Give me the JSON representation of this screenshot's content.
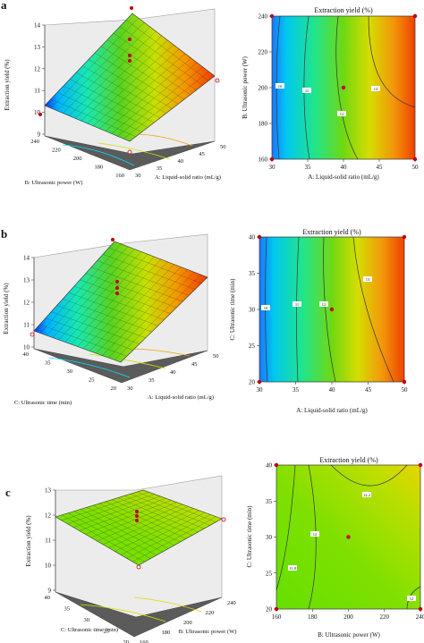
{
  "panels": [
    {
      "letter": "a",
      "surface": {
        "z_label": "Extraction yield (%)",
        "z_ticks": [
          "9",
          "10",
          "11",
          "12",
          "13",
          "14"
        ],
        "left_axis_label": "B: Ultrasonic power (W)",
        "left_ticks": [
          "160",
          "180",
          "200",
          "220",
          "240"
        ],
        "right_axis_label": "A: Liquid-solid ratio (mL/g)",
        "right_ticks": [
          "30",
          "35",
          "40",
          "45",
          "50"
        ]
      },
      "contour": {
        "title": "Extraction yield (%)",
        "xlabel": "A: Liquid-solid ratio (mL/g)",
        "ylabel": "B: Ultrasonic power (W)",
        "x_ticks": [
          "30",
          "35",
          "40",
          "45",
          "50"
        ],
        "y_ticks": [
          "160",
          "180",
          "200",
          "220",
          "240"
        ],
        "contour_labels": [
          "10",
          "11",
          "12",
          "13"
        ]
      }
    },
    {
      "letter": "b",
      "surface": {
        "z_label": "Extraction yield (%)",
        "z_ticks": [
          "10",
          "11",
          "12",
          "13",
          "14"
        ],
        "left_axis_label": "C: Ultrasonic time (min)",
        "left_ticks": [
          "20",
          "25",
          "30",
          "35",
          "40"
        ],
        "right_axis_label": "A: Liquid-solid ratio (mL/g)",
        "right_ticks": [
          "30",
          "35",
          "40",
          "45",
          "50"
        ]
      },
      "contour": {
        "title": "Extraction yield (%)",
        "xlabel": "A: Liquid-solid ratio (mL/g)",
        "ylabel": "C: Ultrasonic time (min)",
        "x_ticks": [
          "30",
          "35",
          "40",
          "45",
          "50"
        ],
        "y_ticks": [
          "20",
          "25",
          "30",
          "35",
          "40"
        ],
        "contour_labels": [
          "10",
          "11",
          "12",
          "13"
        ]
      }
    },
    {
      "letter": "c",
      "surface": {
        "z_label": "Extraction yield (%)",
        "z_ticks": [
          "9",
          "10",
          "11",
          "12",
          "13"
        ],
        "left_axis_label": "C: Ultrasonic time (min)",
        "left_ticks": [
          "20",
          "25",
          "30",
          "35",
          "40"
        ],
        "right_axis_label": "B: Ultrasonic power (W)",
        "right_ticks": [
          "160",
          "180",
          "200",
          "220",
          "240"
        ]
      },
      "contour": {
        "title": "Extraction yield (%)",
        "xlabel": "B: Ultrasonic power (W)",
        "ylabel": "C: Ultrasonic time (min)",
        "x_ticks": [
          "160",
          "180",
          "200",
          "220",
          "240"
        ],
        "y_ticks": [
          "20",
          "25",
          "30",
          "35",
          "40"
        ],
        "contour_labels": [
          "11.8",
          "12",
          "12.2",
          "12"
        ]
      }
    }
  ],
  "chart_data": [
    {
      "type": "surface",
      "panel": "a",
      "x_name": "A: Liquid-solid ratio (mL/g)",
      "x_range": [
        30,
        50
      ],
      "y_name": "B: Ultrasonic power (W)",
      "y_range": [
        160,
        240
      ],
      "z_name": "Extraction yield (%)",
      "z_range": [
        9,
        14
      ],
      "corner_values": {
        "x30_y160": 9.3,
        "x50_y160": 11.4,
        "x30_y240": 9.8,
        "x50_y240": 13.4
      },
      "peak": {
        "x": 43,
        "y": 230,
        "z": 14.2
      },
      "center_point": {
        "x": 40,
        "y": 200,
        "z": 13.2
      }
    },
    {
      "type": "contour",
      "panel": "a",
      "x_range": [
        30,
        50
      ],
      "y_range": [
        160,
        240
      ],
      "levels": [
        10,
        11,
        12,
        13
      ],
      "design_points": [
        [
          30,
          160
        ],
        [
          50,
          160
        ],
        [
          30,
          240
        ],
        [
          50,
          240
        ],
        [
          40,
          200
        ]
      ]
    },
    {
      "type": "surface",
      "panel": "b",
      "x_name": "A: Liquid-solid ratio (mL/g)",
      "x_range": [
        30,
        50
      ],
      "y_name": "C: Ultrasonic time (min)",
      "y_range": [
        20,
        40
      ],
      "z_name": "Extraction yield (%)",
      "z_range": [
        10,
        14
      ],
      "corner_values": {
        "x30_y20": 9.8,
        "x50_y20": 12.5,
        "x30_y40": 10.5,
        "x50_y40": 13.5
      },
      "peak": {
        "x": 45,
        "y": 38,
        "z": 13.9
      },
      "center_point": {
        "x": 40,
        "y": 30,
        "z": 12.9
      }
    },
    {
      "type": "contour",
      "panel": "b",
      "x_range": [
        30,
        50
      ],
      "y_range": [
        20,
        40
      ],
      "levels": [
        10,
        11,
        12,
        13
      ],
      "design_points": [
        [
          30,
          20
        ],
        [
          50,
          20
        ],
        [
          30,
          40
        ],
        [
          50,
          40
        ],
        [
          40,
          30
        ]
      ]
    },
    {
      "type": "surface",
      "panel": "c",
      "x_name": "B: Ultrasonic power (W)",
      "x_range": [
        160,
        240
      ],
      "y_name": "C: Ultrasonic time (min)",
      "y_range": [
        20,
        40
      ],
      "z_name": "Extraction yield (%)",
      "z_range": [
        9,
        13
      ],
      "corner_values": {
        "x160_y20": 11.6,
        "x240_y20": 12.1,
        "x160_y40": 12.1,
        "x240_y40": 12.4
      },
      "peak": {
        "x": 200,
        "y": 30,
        "z": 12.7
      },
      "center_point": {
        "x": 200,
        "y": 30,
        "z": 12.5
      }
    },
    {
      "type": "contour",
      "panel": "c",
      "x_range": [
        160,
        240
      ],
      "y_range": [
        20,
        40
      ],
      "levels": [
        11.8,
        12,
        12.2
      ],
      "design_points": [
        [
          160,
          20
        ],
        [
          240,
          20
        ],
        [
          160,
          40
        ],
        [
          240,
          40
        ],
        [
          200,
          30
        ]
      ]
    }
  ]
}
